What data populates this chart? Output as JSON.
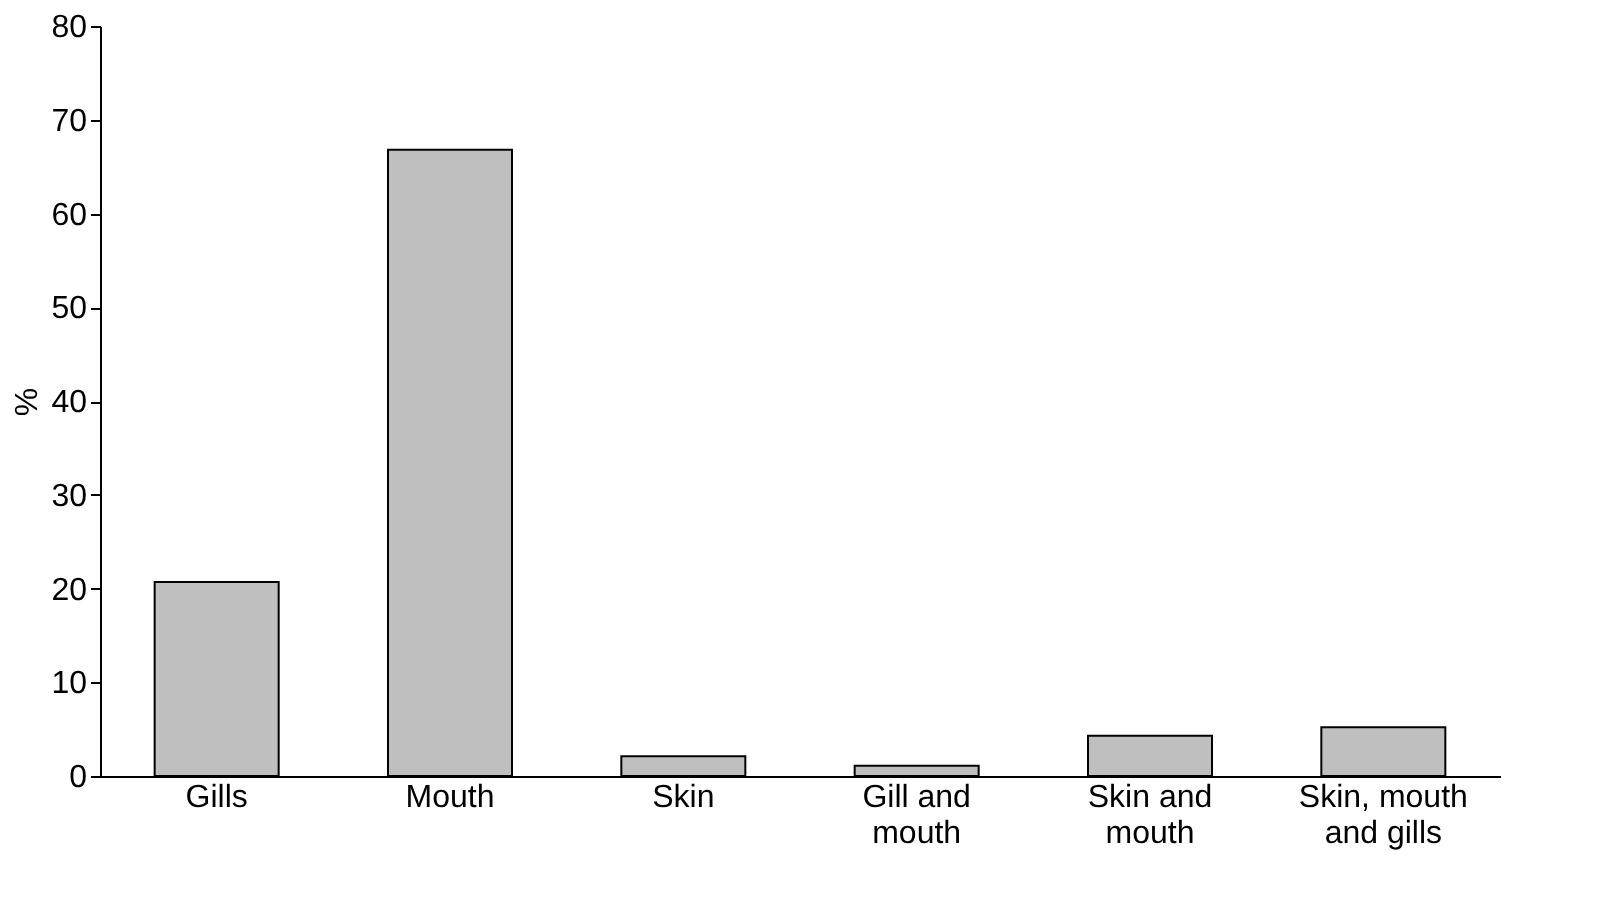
{
  "chart_data": {
    "type": "bar",
    "ylabel": "%",
    "categories": [
      "Gills",
      "Mouth",
      "Skin",
      "Gill and mouth",
      "Skin and mouth",
      "Skin, mouth and gills"
    ],
    "values": [
      20.7,
      66.8,
      2.1,
      1.1,
      4.3,
      5.2
    ],
    "color": "#bfbfbf",
    "ylim": [
      0,
      80
    ],
    "yticks": [
      0,
      10,
      20,
      30,
      40,
      50,
      60,
      70,
      80
    ],
    "grid": false
  }
}
